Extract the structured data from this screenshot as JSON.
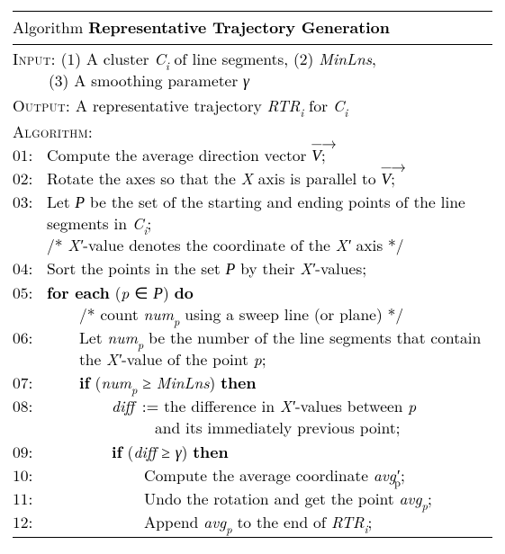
{
  "title": {
    "prefix": "Algorithm",
    "name": "Representative Trajectory Generation"
  },
  "input": {
    "label": "Input:",
    "items_html": "(1) A cluster <span class='mi'>C<sub>i</sub></span> of line segments, (2) <span class='mi'>MinLns</span>,<br><span style='display:inline-block;margin-left:40px'>(3) A smoothing parameter <span class='mi'>γ</span></span>"
  },
  "output": {
    "label": "Output:",
    "text_html": "A representative trajectory <span class='mi'>RTR<sub>i</sub></span> for <span class='mi'>C<sub>i</sub></span>"
  },
  "algorithm_label": "Algorithm:",
  "lines": [
    {
      "n": "01:",
      "html": "Compute the average direction vector <span class='vec'><span class='arrow'>−→</span><span class='cal'>V</span></span>;"
    },
    {
      "n": "02:",
      "html": "Rotate the axes so that the <span class='mi'>X</span> axis is parallel to <span class='vec'><span class='arrow'>−→</span><span class='cal'>V</span></span>;"
    },
    {
      "n": "03:",
      "html": "Let <span class='cal'>P</span> be the set of the starting and ending points of the line segments in <span class='mi'>C<sub>i</sub></span>;<br><span class='comment'>/* <span class='mi'>X</span><span class='mi'>′</span>-value denotes the coordinate of the <span class='mi'>X</span><span class='mi'>′</span> axis */</span>"
    },
    {
      "n": "04:",
      "html": "Sort the points in the set <span class='cal'>P</span> by their <span class='mi'>X</span><span class='mi'>′</span>-values;"
    },
    {
      "n": "05:",
      "html": "<span class='mb'>for each</span> (<span class='mi'>p</span> ∈ <span class='cal'>P</span>) <span class='mb'>do</span><br><span class='in1'>/* count <span class='mi'>num<sub>p</sub></span> using a sweep line (or plane) */</span>"
    },
    {
      "n": "06:",
      "html": "<span class='in1'>Let <span class='mi'>num<sub>p</sub></span> be the number of the line segments that contain the <span class='mi'>X</span><span class='mi'>′</span>-value of the point <span class='mi'>p</span>;</span>"
    },
    {
      "n": "07:",
      "html": "<span class='in1'><span class='mb'>if</span> (<span class='mi'>num<sub>p</sub></span> ≥ <span class='mi'>MinLns</span>) <span class='mb'>then</span></span>"
    },
    {
      "n": "08:",
      "html": "<span class='in2'><span class='mi'>diff</span>&nbsp;:= the difference in <span class='mi'>X</span><span class='mi'>′</span>-values between <span class='mi'>p</span><br><span style='display:inline-block;margin-left:48px'>and its immediately previous point;</span></span>"
    },
    {
      "n": "09:",
      "html": "<span class='in2'><span class='mb'>if</span> (<span class='mi'>diff</span> ≥ <span class='mi'>γ</span>) <span class='mb'>then</span></span>"
    },
    {
      "n": "10:",
      "html": "<span class='in3'>Compute the average coordinate <span class='mi'>avg</span><span class='mi'>′</span><sub style='margin-left:-0.45em'>p</sub>;</span>"
    },
    {
      "n": "11:",
      "html": "<span class='in3'>Undo the rotation and get the point <span class='mi'>avg<sub>p</sub></span>;</span>"
    },
    {
      "n": "12:",
      "html": "<span class='in3'>Append <span class='mi'>avg<sub>p</sub></span> to the end of <span class='mi'>RTR<sub>i</sub></span>;</span>"
    }
  ],
  "colors": {
    "text": "#000000",
    "background": "#ffffff",
    "rule": "#000000"
  },
  "fonts": {
    "body_family": "CMU Serif / Latin Modern",
    "body_size_pt": 11,
    "bold_weight": 700
  }
}
